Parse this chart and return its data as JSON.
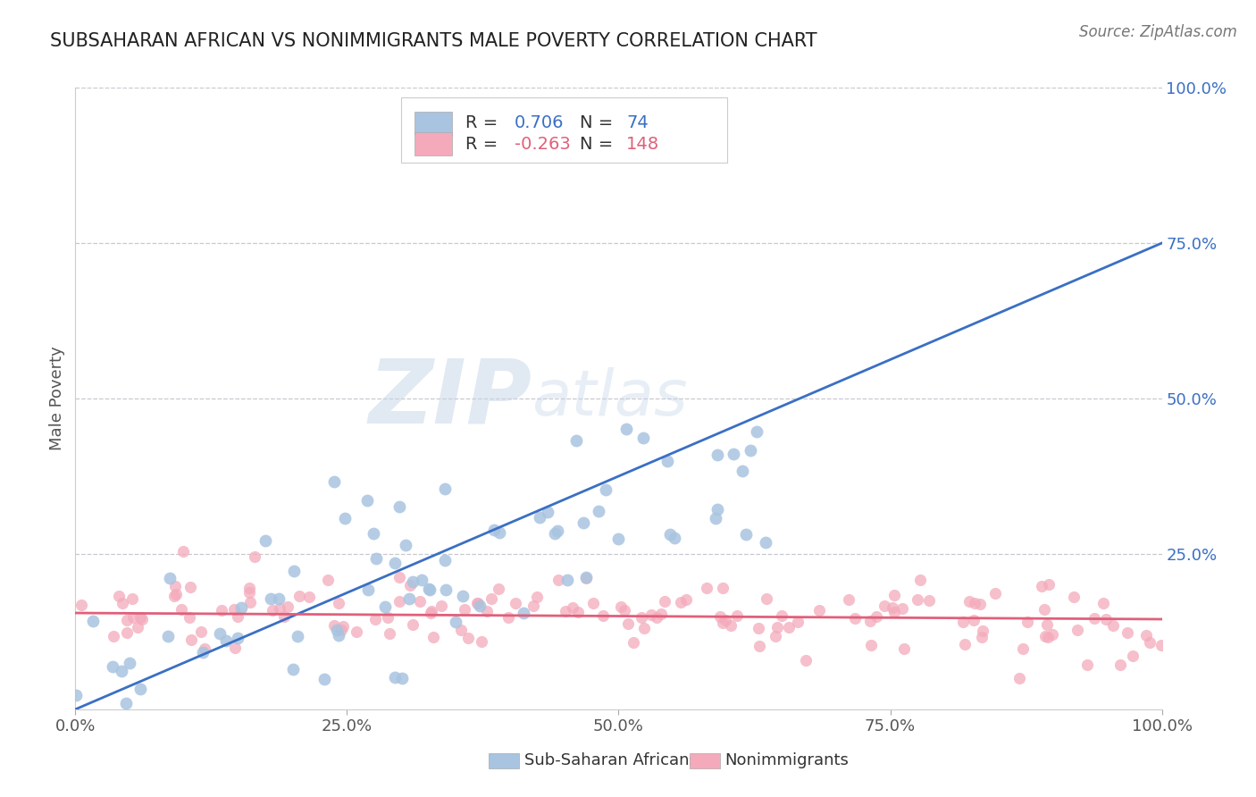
{
  "title": "SUBSAHARAN AFRICAN VS NONIMMIGRANTS MALE POVERTY CORRELATION CHART",
  "source": "Source: ZipAtlas.com",
  "ylabel": "Male Poverty",
  "xlim": [
    0.0,
    1.0
  ],
  "ylim": [
    0.0,
    1.0
  ],
  "xticks": [
    0.0,
    0.25,
    0.5,
    0.75,
    1.0
  ],
  "xtick_labels": [
    "0.0%",
    "25.0%",
    "50.0%",
    "75.0%",
    "100.0%"
  ],
  "ytick_labels": [
    "25.0%",
    "50.0%",
    "75.0%",
    "100.0%"
  ],
  "yticks": [
    0.25,
    0.5,
    0.75,
    1.0
  ],
  "blue_scatter_color": "#A8C4E0",
  "pink_scatter_color": "#F4AABB",
  "blue_line_color": "#3A6FC4",
  "pink_line_color": "#E0607A",
  "r_blue": 0.706,
  "n_blue": 74,
  "r_pink": -0.263,
  "n_pink": 148,
  "legend_label_blue": "Sub-Saharan Africans",
  "legend_label_pink": "Nonimmigrants",
  "watermark_zip": "ZIP",
  "watermark_atlas": "atlas",
  "background_color": "#FFFFFF",
  "grid_color": "#C8C8D0",
  "right_axis_color": "#3A6FC4",
  "title_fontsize": 15,
  "source_fontsize": 12,
  "tick_fontsize": 13,
  "legend_fontsize": 14,
  "blue_line_start_y": 0.0,
  "blue_line_end_y": 0.75,
  "pink_line_start_y": 0.155,
  "pink_line_end_y": 0.145
}
